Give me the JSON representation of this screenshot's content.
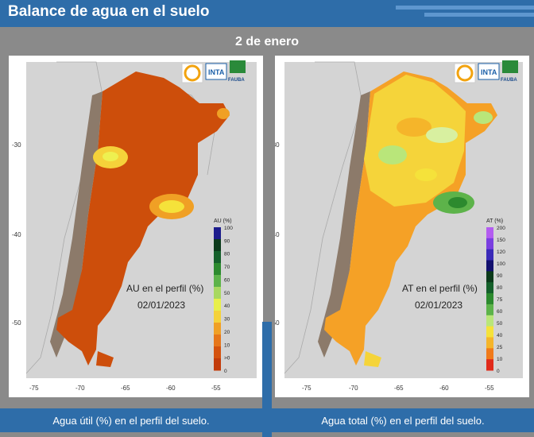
{
  "header": {
    "title": "Balance de agua en el suelo"
  },
  "date_heading": "2 de enero",
  "logos": {
    "inta": "INTA",
    "fauba": "FAUBA"
  },
  "axis": {
    "lat_ticks": [
      "-30",
      "-40",
      "-50"
    ],
    "lon_ticks": [
      "-75",
      "-70",
      "-65",
      "-60",
      "-55"
    ]
  },
  "left_map": {
    "legend_title": "AU (%)",
    "legend_labels": [
      "100",
      "90",
      "80",
      "70",
      "60",
      "50",
      "40",
      "30",
      "20",
      "10",
      ">0",
      "0"
    ],
    "legend_colors": [
      "#1c1c8c",
      "#0b3a1a",
      "#14602a",
      "#2c8a2e",
      "#5db34a",
      "#a8d860",
      "#e8ef4a",
      "#f5d23a",
      "#f0a025",
      "#e6761a",
      "#d4520e",
      "#c23b0a"
    ],
    "label_line1": "AU en el perfil (%)",
    "label_line2": "02/01/2023",
    "caption": "Agua útil (%) en el perfil del suelo."
  },
  "right_map": {
    "legend_title": "AT (%)",
    "legend_labels": [
      "200",
      "150",
      "120",
      "100",
      "90",
      "80",
      "75",
      "60",
      "50",
      "40",
      "25",
      "10",
      "0"
    ],
    "legend_colors": [
      "#b35cf0",
      "#7a3ee0",
      "#3a2ab8",
      "#12106e",
      "#0b3a1a",
      "#14602a",
      "#2c8a2e",
      "#5db34a",
      "#b9e67a",
      "#f5e23a",
      "#f5b52a",
      "#f07a1a",
      "#e02a1a"
    ],
    "label_line1": "AT en el perfil (%)",
    "label_line2": "02/01/2023",
    "caption": "Agua total (%) en el perfil del suelo."
  }
}
